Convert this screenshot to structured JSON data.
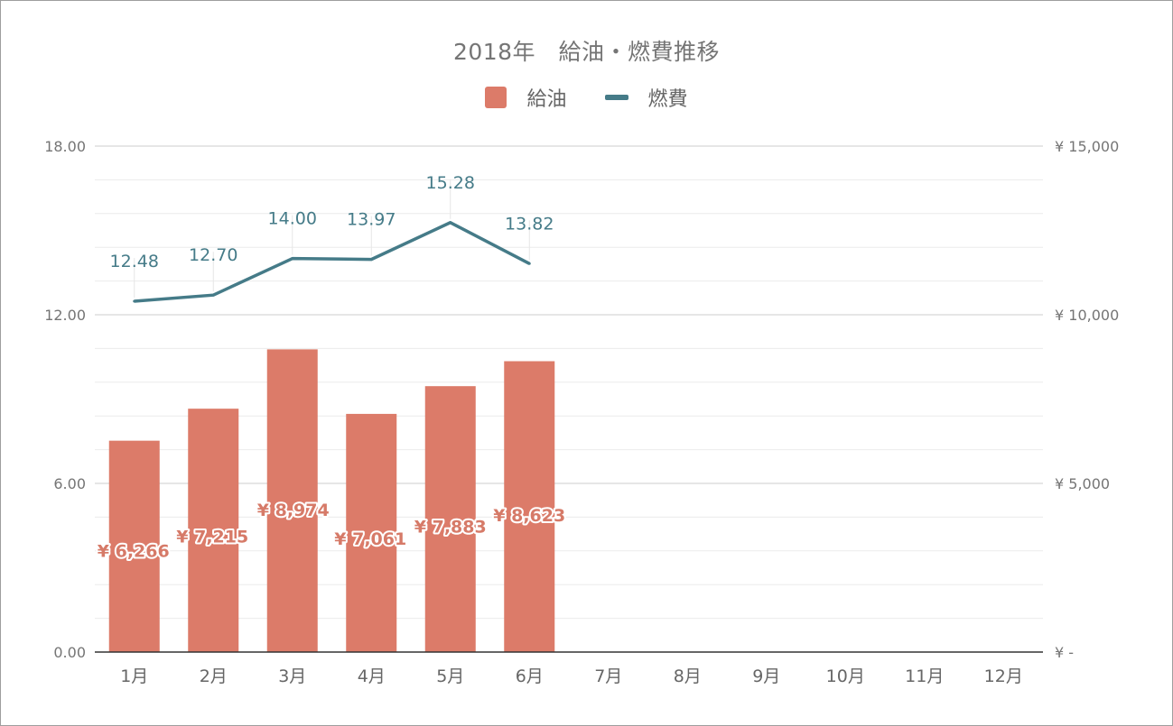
{
  "colors": {
    "fuel_bar": "#dc7b69",
    "efficiency_line": "#457b88",
    "grid_major": "#cccccc",
    "grid_minor": "#ececec",
    "baseline": "#333333"
  },
  "chart_data": {
    "type": "bar",
    "title": "2018年　給油・燃費推移",
    "legend_position": "top",
    "categories": [
      "1月",
      "2月",
      "3月",
      "4月",
      "5月",
      "6月",
      "7月",
      "8月",
      "9月",
      "10月",
      "11月",
      "12月"
    ],
    "series": [
      {
        "name": "給油",
        "type": "bar",
        "axis": "right",
        "values": [
          6266,
          7215,
          8974,
          7061,
          7883,
          8623,
          null,
          null,
          null,
          null,
          null,
          null
        ],
        "labels": [
          "¥ 6,266",
          "¥ 7,215",
          "¥ 8,974",
          "¥ 7,061",
          "¥ 7,883",
          "¥ 8,623"
        ]
      },
      {
        "name": "燃費",
        "type": "line",
        "axis": "left",
        "values": [
          12.48,
          12.7,
          14.0,
          13.97,
          15.28,
          13.82,
          null,
          null,
          null,
          null,
          null,
          null
        ],
        "labels": [
          "12.48",
          "12.70",
          "14.00",
          "13.97",
          "15.28",
          "13.82"
        ]
      }
    ],
    "y_left": {
      "range": [
        0,
        18
      ],
      "ticks": [
        0,
        6,
        12,
        18
      ],
      "tick_labels": [
        "0.00",
        "6.00",
        "12.00",
        "18.00"
      ]
    },
    "y_right": {
      "range": [
        0,
        15000
      ],
      "ticks": [
        0,
        5000,
        10000,
        15000
      ],
      "tick_labels": [
        "¥ -",
        "¥ 5,000",
        "¥ 10,000",
        "¥ 15,000"
      ]
    },
    "grid": true
  }
}
